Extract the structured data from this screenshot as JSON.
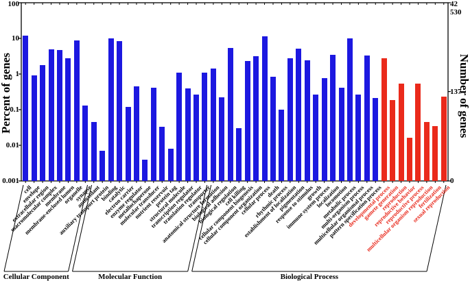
{
  "chart_data": {
    "type": "bar",
    "title": "",
    "ylabel": "Percent of genes",
    "y2label": "Number of genes",
    "yscale": "log",
    "ylim": [
      0.001,
      100
    ],
    "legend": "none",
    "grid": false,
    "y_ticks": [
      {
        "label": "100",
        "value": 100
      },
      {
        "label": "10",
        "value": 10
      },
      {
        "label": "1",
        "value": 1
      },
      {
        "label": "0.1",
        "value": 0.1
      },
      {
        "label": "0.01",
        "value": 0.01
      },
      {
        "label": "0.001",
        "value": 0.001
      }
    ],
    "y2_ticks": [
      {
        "label": "42 530",
        "percent": 100
      },
      {
        "label": "137",
        "percent": 0.322
      },
      {
        "label": "0",
        "percent": 0.001
      }
    ],
    "colors": {
      "bar_default": "#1c18e0",
      "bar_highlight": "#ea2a1b",
      "label_highlight": "#e8291c",
      "axis": "#000000"
    },
    "groups": [
      {
        "name": "Cellular Component",
        "bars": [
          {
            "label": "cell",
            "percent": 12
          },
          {
            "label": "envelope",
            "percent": 0.9
          },
          {
            "label": "extracellular region",
            "percent": 1.8
          },
          {
            "label": "macromolecular complex",
            "percent": 5.0
          },
          {
            "label": "membrane",
            "percent": 4.8
          },
          {
            "label": "membrane-enclosed lumen",
            "percent": 2.8
          },
          {
            "label": "organelle",
            "percent": 8.8
          },
          {
            "label": "synapse",
            "percent": 0.13
          }
        ]
      },
      {
        "name": "Molecular Function",
        "bars": [
          {
            "label": "antioxidant",
            "percent": 0.045
          },
          {
            "label": "auxiliary transport protein",
            "percent": 0.007
          },
          {
            "label": "binding",
            "percent": 10
          },
          {
            "label": "catalytic",
            "percent": 8.2
          },
          {
            "label": "electron carrier",
            "percent": 0.12
          },
          {
            "label": "enzyme regulator",
            "percent": 0.45
          },
          {
            "label": "metallochaperone",
            "percent": 0.004
          },
          {
            "label": "molecular transducer",
            "percent": 0.41
          },
          {
            "label": "nutrient reservoir",
            "percent": 0.033
          },
          {
            "label": "protein tag",
            "percent": 0.008
          },
          {
            "label": "structural molecule",
            "percent": 1.1
          },
          {
            "label": "transcription regulator",
            "percent": 0.4
          },
          {
            "label": "translation regulator",
            "percent": 0.26
          },
          {
            "label": "transporter",
            "percent": 1.1
          }
        ]
      },
      {
        "name": "Biological Process",
        "bars": [
          {
            "label": "anatomical structure formation",
            "percent": 1.4
          },
          {
            "label": "biological adhesion",
            "percent": 0.22
          },
          {
            "label": "biological regulation",
            "percent": 5.5
          },
          {
            "label": "cell killing",
            "percent": 0.03
          },
          {
            "label": "cellular component biogenesis",
            "percent": 2.3
          },
          {
            "label": "cellular component organization",
            "percent": 3.2
          },
          {
            "label": "cellular process",
            "percent": 11.5
          },
          {
            "label": "death",
            "percent": 0.85
          },
          {
            "label": "rhythmic process",
            "percent": 0.1
          },
          {
            "label": "establishment of localization",
            "percent": 2.8
          },
          {
            "label": "pigmentation",
            "percent": 5.2
          },
          {
            "label": "response to stimulus",
            "percent": 2.4
          },
          {
            "label": "growth",
            "percent": 0.27
          },
          {
            "label": "immune system process",
            "percent": 0.76
          },
          {
            "label": "localization",
            "percent": 3.4
          },
          {
            "label": "locomotion",
            "percent": 0.41
          },
          {
            "label": "metabolic process",
            "percent": 9.8
          },
          {
            "label": "multi-organism process",
            "percent": 0.27
          },
          {
            "label": "multicellular organismal process",
            "percent": 3.3
          },
          {
            "label": "pattern specification process",
            "percent": 0.21
          },
          {
            "label": "developmental process",
            "percent": 2.8,
            "highlight": true
          },
          {
            "label": "gamete generation",
            "percent": 0.19,
            "highlight": true
          },
          {
            "label": "reproduction",
            "percent": 0.55,
            "highlight": true
          },
          {
            "label": "reproductive behavior",
            "percent": 0.016,
            "highlight": true
          },
          {
            "label": "reproductive process",
            "percent": 0.55,
            "highlight": true
          },
          {
            "label": "multicellular organism reproduction",
            "percent": 0.046,
            "highlight": true
          },
          {
            "label": "fertilization",
            "percent": 0.035,
            "highlight": true
          },
          {
            "label": "sexual reproduction",
            "percent": 0.23,
            "highlight": true
          }
        ]
      }
    ]
  }
}
